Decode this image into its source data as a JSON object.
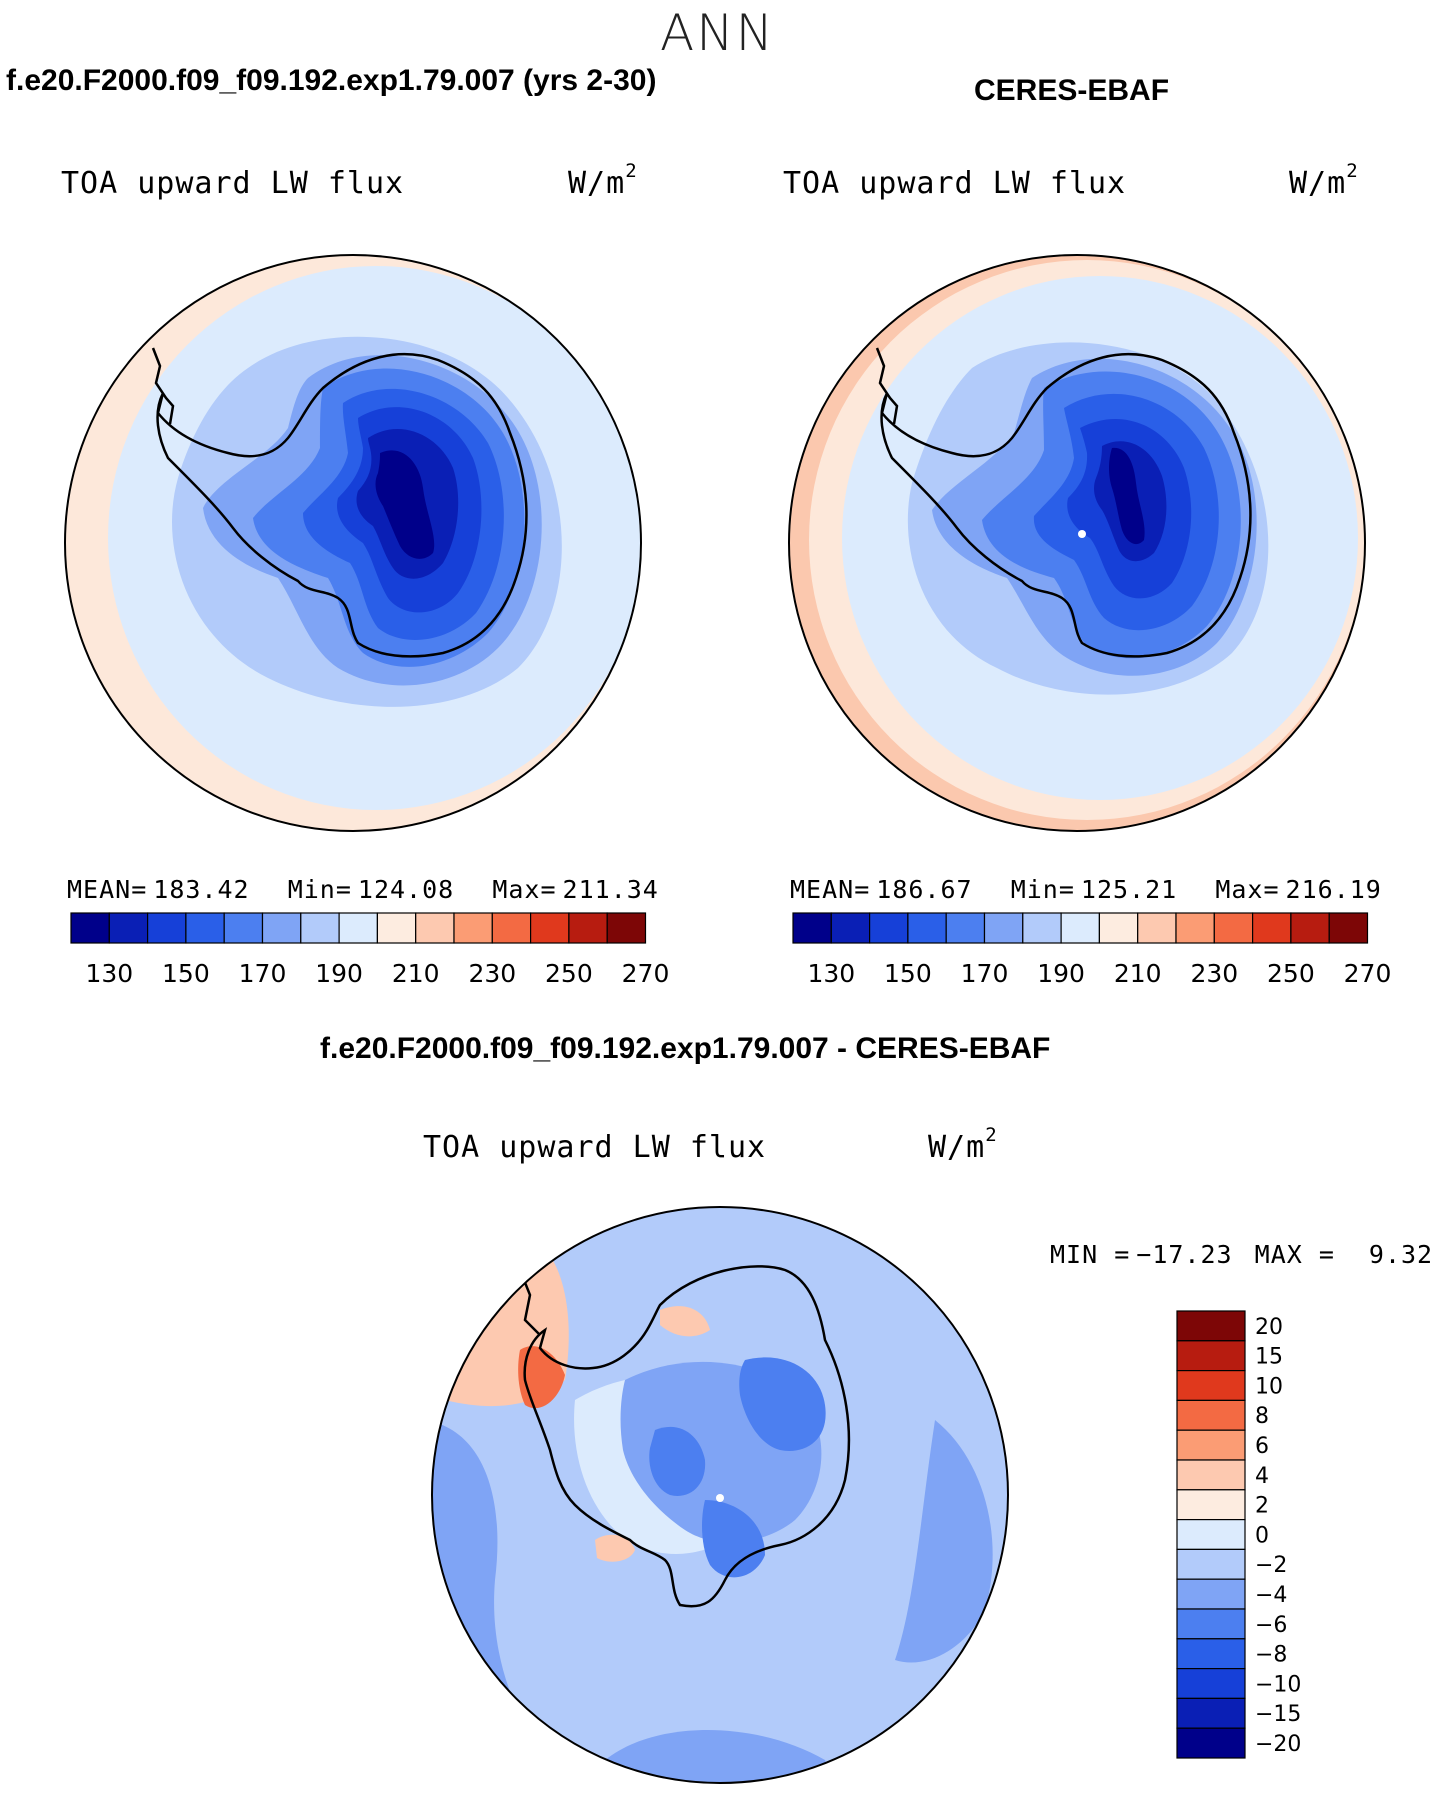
{
  "season": "ANN",
  "panels": [
    {
      "id": "test",
      "case_title": "f.e20.F2000.f09_f09.192.exp1.79.007 (yrs 2-30)",
      "variable": "TOA upward LW flux",
      "units": "W/m",
      "units_exp": "2",
      "mean_label": "MEAN=",
      "mean": "183.42",
      "min_label": "Min=",
      "min": "124.08",
      "max_label": "Max=",
      "max": "211.34"
    },
    {
      "id": "obs",
      "case_title": "CERES-EBAF",
      "variable": "TOA upward LW flux",
      "units": "W/m",
      "units_exp": "2",
      "mean_label": "MEAN=",
      "mean": "186.67",
      "min_label": "Min=",
      "min": "125.21",
      "max_label": "Max=",
      "max": "216.19"
    }
  ],
  "diff": {
    "case_title": "f.e20.F2000.f09_f09.192.exp1.79.007 - CERES-EBAF",
    "variable": "TOA upward LW flux",
    "units": "W/m",
    "units_exp": "2",
    "min_label": "MIN =",
    "min": "−17.23",
    "max_label": "MAX =",
    "max": "9.32"
  },
  "colorbar_main": {
    "colors": [
      "#00008a",
      "#0a1fb5",
      "#1640d8",
      "#2a5fe8",
      "#4c7ff0",
      "#7fa4f5",
      "#b2cbfa",
      "#dcebfd",
      "#fdece0",
      "#fdc9b0",
      "#fb9c74",
      "#f36a43",
      "#e0391d",
      "#b71c10",
      "#7d0606"
    ],
    "tick_labels": [
      "130",
      "150",
      "170",
      "190",
      "210",
      "230",
      "250",
      "270"
    ]
  },
  "colorbar_diff": {
    "colors": [
      "#7d0606",
      "#b71c10",
      "#e0391d",
      "#f36a43",
      "#fb9c74",
      "#fdc9b0",
      "#fdece0",
      "#dcebfd",
      "#b2cbfa",
      "#7fa4f5",
      "#4c7ff0",
      "#2a5fe8",
      "#1640d8",
      "#0a1fb5",
      "#00008a"
    ],
    "tick_labels": [
      "20",
      "15",
      "10",
      "8",
      "6",
      "4",
      "2",
      "0",
      "−2",
      "−4",
      "−6",
      "−8",
      "−10",
      "−15",
      "−20"
    ]
  },
  "map_colors": {
    "ocean_outer": "#fde8da",
    "ocean_mid": "#dcebfd",
    "ocean_inner": "#b2cbfa",
    "coast_ring": "#7fa4f5",
    "ice_1": "#4c7ff0",
    "ice_2": "#2a5fe8",
    "ice_3": "#1640d8",
    "ice_4": "#0a1fb5",
    "ice_5": "#00008a",
    "obs_outer": "#fbc8ae",
    "diff_base": "#b2cbfa",
    "diff_light": "#dcebfd",
    "diff_mid": "#7fa4f5",
    "diff_dark": "#4c7ff0",
    "diff_warm": "#fdc9b0",
    "diff_hot": "#f36a43"
  }
}
